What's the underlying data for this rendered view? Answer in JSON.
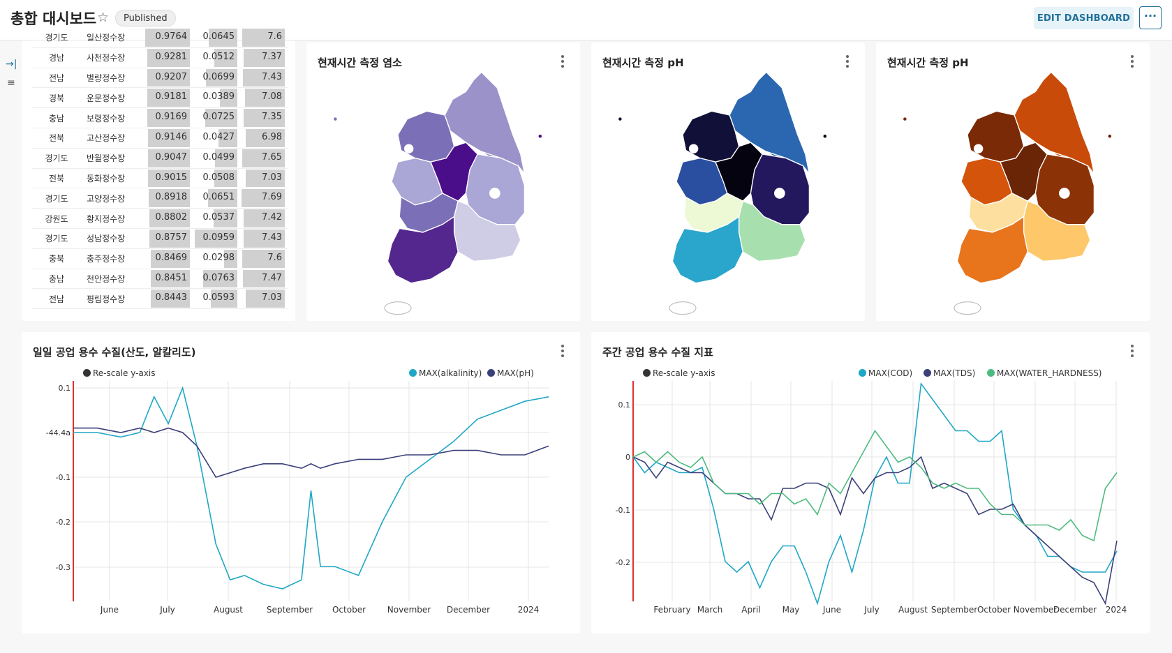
{
  "header": {
    "title": "총합 대시보드",
    "badge": "Published",
    "edit_label": "EDIT DASHBOARD",
    "more_label": "···"
  },
  "sidebar": {
    "expand_icon": "→|",
    "filter_icon": "≡"
  },
  "table": {
    "rows": [
      {
        "region": "경기도",
        "plant": "일산정수장",
        "v1": "0.9764",
        "v2": "0.0645",
        "v3": "7.6",
        "f1": 0.976,
        "f2": 0.645,
        "f3": 0.95
      },
      {
        "region": "경남",
        "plant": "사천정수장",
        "v1": "0.9281",
        "v2": "0.0512",
        "v3": "7.37",
        "f1": 0.928,
        "f2": 0.512,
        "f3": 0.92
      },
      {
        "region": "전남",
        "plant": "별량정수장",
        "v1": "0.9207",
        "v2": "0.0699",
        "v3": "7.43",
        "f1": 0.921,
        "f2": 0.699,
        "f3": 0.93
      },
      {
        "region": "경북",
        "plant": "운문정수장",
        "v1": "0.9181",
        "v2": "0.0389",
        "v3": "7.08",
        "f1": 0.918,
        "f2": 0.389,
        "f3": 0.885
      },
      {
        "region": "충남",
        "plant": "보령정수장",
        "v1": "0.9169",
        "v2": "0.0725",
        "v3": "7.35",
        "f1": 0.917,
        "f2": 0.725,
        "f3": 0.92
      },
      {
        "region": "전북",
        "plant": "고산정수장",
        "v1": "0.9146",
        "v2": "0.0427",
        "v3": "6.98",
        "f1": 0.915,
        "f2": 0.427,
        "f3": 0.873
      },
      {
        "region": "경기도",
        "plant": "반월정수장",
        "v1": "0.9047",
        "v2": "0.0499",
        "v3": "7.65",
        "f1": 0.905,
        "f2": 0.499,
        "f3": 0.956
      },
      {
        "region": "전북",
        "plant": "동화정수장",
        "v1": "0.9015",
        "v2": "0.0508",
        "v3": "7.03",
        "f1": 0.902,
        "f2": 0.508,
        "f3": 0.879
      },
      {
        "region": "경기도",
        "plant": "고양정수장",
        "v1": "0.8918",
        "v2": "0.0651",
        "v3": "7.69",
        "f1": 0.892,
        "f2": 0.651,
        "f3": 0.961
      },
      {
        "region": "강원도",
        "plant": "황지정수장",
        "v1": "0.8802",
        "v2": "0.0537",
        "v3": "7.42",
        "f1": 0.88,
        "f2": 0.537,
        "f3": 0.928
      },
      {
        "region": "경기도",
        "plant": "성남정수장",
        "v1": "0.8757",
        "v2": "0.0959",
        "v3": "7.43",
        "f1": 0.876,
        "f2": 0.959,
        "f3": 0.929
      },
      {
        "region": "충북",
        "plant": "충주정수장",
        "v1": "0.8469",
        "v2": "0.0298",
        "v3": "7.6",
        "f1": 0.847,
        "f2": 0.298,
        "f3": 0.95
      },
      {
        "region": "충남",
        "plant": "천안정수장",
        "v1": "0.8451",
        "v2": "0.0763",
        "v3": "7.47",
        "f1": 0.845,
        "f2": 0.763,
        "f3": 0.934
      },
      {
        "region": "전남",
        "plant": "평림정수장",
        "v1": "0.8443",
        "v2": "0.0593",
        "v3": "7.03",
        "f1": 0.844,
        "f2": 0.593,
        "f3": 0.879
      }
    ]
  },
  "maps": [
    {
      "title": "현재시간 측정 염소",
      "palette": {
        "nw": "#7b70b8",
        "ne": "#7b70b8",
        "w": "#aaa6d6",
        "c": "#4b0e8a",
        "e": "#aaa6d6",
        "sw": "#7b70b8",
        "se": "#cfcde6",
        "s": "#54278f",
        "n": "#9b92c9"
      }
    },
    {
      "title": "현재시간 측정 pH",
      "palette": {
        "nw": "#101038",
        "ne": "#2166ac",
        "w": "#2a4fa0",
        "c": "#05030f",
        "e": "#23185e",
        "sw": "#edf8d4",
        "se": "#a8dfae",
        "s": "#2aa5cb",
        "n": "#2a67b0"
      }
    },
    {
      "title": "현재시간 측정 pH",
      "palette": {
        "nw": "#7a2a06",
        "ne": "#c84b0a",
        "w": "#d4540c",
        "c": "#6a2506",
        "e": "#8b3306",
        "sw": "#fde0a0",
        "se": "#fdc76a",
        "s": "#e8741c",
        "n": "#c84b0a"
      }
    }
  ],
  "chart_daily": {
    "title": "일일 공업 용수 수질(산도, 알칼리도)",
    "rescale_label": "Re-scale y-axis",
    "legend": [
      "MAX(alkalinity)",
      "MAX(pH)"
    ],
    "colors": [
      "#1fa7c6",
      "#3b3f7a"
    ],
    "chart_data": {
      "type": "line",
      "x_ticks": [
        "June",
        "July",
        "August",
        "September",
        "October",
        "November",
        "December",
        "2024"
      ],
      "y_ticks": [
        "0.1",
        "-44.4a",
        "-0.1",
        "-0.2",
        "-0.3"
      ],
      "series": [
        {
          "name": "MAX(alkalinity)",
          "x": [
            0,
            0.05,
            0.1,
            0.14,
            0.17,
            0.2,
            0.23,
            0.26,
            0.3,
            0.33,
            0.36,
            0.4,
            0.44,
            0.48,
            0.5,
            0.52,
            0.55,
            0.6,
            0.65,
            0.7,
            0.75,
            0.8,
            0.85,
            0.9,
            0.95,
            1.0
          ],
          "y": [
            -0.0,
            0.0,
            -0.01,
            0.0,
            0.08,
            0.02,
            0.1,
            -0.03,
            -0.25,
            -0.33,
            -0.32,
            -0.34,
            -0.35,
            -0.33,
            -0.13,
            -0.3,
            -0.3,
            -0.32,
            -0.2,
            -0.1,
            -0.06,
            -0.02,
            0.03,
            0.05,
            0.07,
            0.08
          ]
        },
        {
          "name": "MAX(pH)",
          "x": [
            0,
            0.05,
            0.1,
            0.14,
            0.17,
            0.2,
            0.23,
            0.26,
            0.3,
            0.33,
            0.36,
            0.4,
            0.44,
            0.48,
            0.5,
            0.52,
            0.55,
            0.6,
            0.65,
            0.7,
            0.75,
            0.8,
            0.85,
            0.9,
            0.95,
            1.0
          ],
          "y": [
            0.01,
            0.01,
            0.0,
            0.01,
            0.0,
            0.01,
            0.0,
            -0.03,
            -0.1,
            -0.09,
            -0.08,
            -0.07,
            -0.07,
            -0.08,
            -0.07,
            -0.08,
            -0.07,
            -0.06,
            -0.06,
            -0.05,
            -0.05,
            -0.04,
            -0.04,
            -0.05,
            -0.05,
            -0.03
          ]
        }
      ]
    }
  },
  "chart_weekly": {
    "title": "주간 공업 용수 수질 지표",
    "rescale_label": "Re-scale y-axis",
    "legend": [
      "MAX(COD)",
      "MAX(TDS)",
      "MAX(WATER_HARDNESS)"
    ],
    "colors": [
      "#1fa7c6",
      "#3b3f7a",
      "#4dbb7f"
    ],
    "chart_data": {
      "type": "line",
      "x_ticks": [
        "February",
        "March",
        "April",
        "May",
        "June",
        "July",
        "August",
        "September",
        "October",
        "November",
        "December",
        "2024"
      ],
      "y_ticks": [
        "0.1",
        "0",
        "-0.1",
        "-0.2"
      ],
      "series": [
        {
          "name": "MAX(COD)",
          "y": [
            0,
            -0.03,
            -0.01,
            -0.02,
            -0.03,
            -0.03,
            -0.02,
            -0.1,
            -0.2,
            -0.22,
            -0.2,
            -0.25,
            -0.2,
            -0.17,
            -0.17,
            -0.22,
            -0.28,
            -0.2,
            -0.15,
            -0.22,
            -0.14,
            -0.04,
            0.0,
            -0.05,
            -0.05,
            0.14,
            0.11,
            0.08,
            0.05,
            0.05,
            0.03,
            0.03,
            0.05,
            -0.1,
            -0.13,
            -0.15,
            -0.19,
            -0.19,
            -0.21,
            -0.22,
            -0.22,
            -0.22,
            -0.18
          ]
        },
        {
          "name": "MAX(TDS)",
          "y": [
            0,
            -0.01,
            -0.04,
            -0.01,
            -0.02,
            -0.03,
            -0.03,
            -0.05,
            -0.07,
            -0.07,
            -0.08,
            -0.08,
            -0.12,
            -0.06,
            -0.06,
            -0.05,
            -0.05,
            -0.06,
            -0.11,
            -0.04,
            -0.07,
            -0.04,
            -0.03,
            -0.03,
            -0.02,
            0.0,
            -0.06,
            -0.05,
            -0.06,
            -0.07,
            -0.11,
            -0.1,
            -0.1,
            -0.09,
            -0.13,
            -0.15,
            -0.17,
            -0.19,
            -0.21,
            -0.23,
            -0.24,
            -0.28,
            -0.16
          ]
        },
        {
          "name": "MAX(WATER_HARDNESS)",
          "y": [
            0,
            0.01,
            -0.01,
            0.01,
            -0.01,
            -0.02,
            0.0,
            -0.05,
            -0.07,
            -0.07,
            -0.07,
            -0.09,
            -0.07,
            -0.07,
            -0.09,
            -0.08,
            -0.11,
            -0.05,
            -0.07,
            -0.03,
            0.01,
            0.05,
            0.02,
            -0.01,
            0.0,
            -0.02,
            -0.05,
            -0.06,
            -0.05,
            -0.06,
            -0.06,
            -0.09,
            -0.11,
            -0.11,
            -0.13,
            -0.13,
            -0.13,
            -0.14,
            -0.12,
            -0.15,
            -0.16,
            -0.06,
            -0.03
          ]
        }
      ]
    }
  }
}
